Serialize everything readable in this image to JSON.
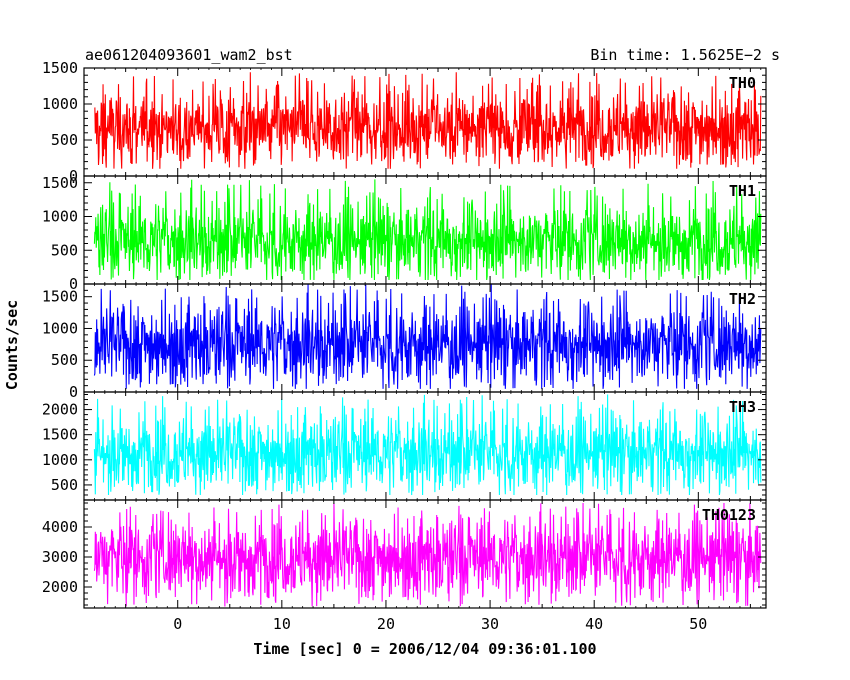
{
  "header": {
    "title": "ae061204093601_wam2_bst",
    "bin_time": "Bin time: 1.5625E−2 s"
  },
  "chart_data": {
    "type": "line",
    "style": "binned light curve, 5 stacked panels sharing the x axis",
    "xlabel": "Time [sec] 0 = 2006/12/04 09:36:01.100",
    "ylabel": "Counts/sec",
    "xlim": [
      -9,
      56.5
    ],
    "x_data_range": [
      -8,
      56
    ],
    "x_ticks": [
      0,
      10,
      20,
      30,
      40,
      50
    ],
    "x_tick_labels": [
      "0",
      "10",
      "20",
      "30",
      "40",
      "50"
    ],
    "panels": [
      {
        "name": "TH0",
        "color": "#ff0000",
        "ylim": [
          0,
          1500
        ],
        "y_ticks": [
          0,
          500,
          1000,
          1500
        ],
        "y_tick_labels": [
          "0",
          "500",
          "1000",
          "1500"
        ],
        "mean": 680,
        "low": 100,
        "high": 1450
      },
      {
        "name": "TH1",
        "color": "#00ff00",
        "ylim": [
          0,
          1600
        ],
        "y_ticks": [
          0,
          500,
          1000,
          1500
        ],
        "y_tick_labels": [
          "0",
          "500",
          "1000",
          "1500"
        ],
        "mean": 650,
        "low": 60,
        "high": 1550
      },
      {
        "name": "TH2",
        "color": "#0000ff",
        "ylim": [
          0,
          1700
        ],
        "y_ticks": [
          0,
          500,
          1000,
          1500
        ],
        "y_tick_labels": [
          "0",
          "500",
          "1000",
          "1500"
        ],
        "mean": 760,
        "low": 50,
        "high": 1700
      },
      {
        "name": "TH3",
        "color": "#00ffff",
        "ylim": [
          200,
          2350
        ],
        "y_ticks": [
          500,
          1000,
          1500,
          2000
        ],
        "y_tick_labels": [
          "500",
          "1000",
          "1500",
          "2000"
        ],
        "mean": 1150,
        "low": 300,
        "high": 2300
      },
      {
        "name": "TH0123",
        "color": "#ff00ff",
        "ylim": [
          1300,
          4900
        ],
        "y_ticks": [
          2000,
          3000,
          4000
        ],
        "y_tick_labels": [
          "2000",
          "3000",
          "4000"
        ],
        "mean": 3000,
        "low": 1350,
        "high": 4800
      }
    ]
  }
}
